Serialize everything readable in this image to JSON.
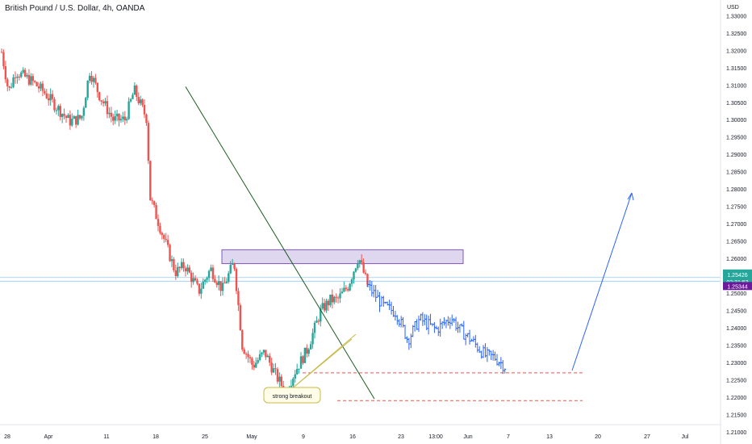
{
  "header": {
    "title": "British Pound / U.S. Dollar, 4h, OANDA"
  },
  "chart_data": {
    "type": "candlestick",
    "symbol": "British Pound / U.S. Dollar, 4h, OANDA",
    "price_axis": {
      "unit": "USD",
      "ticks": [
        "1.33000",
        "1.32500",
        "1.32000",
        "1.31500",
        "1.31000",
        "1.30500",
        "1.30000",
        "1.29500",
        "1.29000",
        "1.28500",
        "1.28000",
        "1.27500",
        "1.27000",
        "1.26500",
        "1.26000",
        "1.25500",
        "1.25000",
        "1.24500",
        "1.24000",
        "1.23500",
        "1.23000",
        "1.22500",
        "1.22000",
        "1.21500",
        "1.21000"
      ],
      "range": [
        1.2065,
        1.3345
      ]
    },
    "time_axis": {
      "ticks": [
        "28",
        "Apr",
        "11",
        "18",
        "25",
        "May",
        "9",
        "16",
        "23",
        "13:00",
        "Jun",
        "7",
        "13",
        "20",
        "27",
        "Jul"
      ]
    },
    "price_labels": {
      "current_price": "1.25426",
      "countdown": "02:31:53",
      "second_price": "1.25344"
    },
    "colors": {
      "up": "#26a69a",
      "down": "#ef5350",
      "projection": "#2962ff",
      "trendline": "#1b5e20",
      "zone_fill": "#d1c4e9",
      "zone_border": "#7e57c2",
      "support": "#ef5350",
      "arrow": "#2962ff",
      "current_label": "#26a69a",
      "second_label": "#6a1b9a"
    },
    "annotations": {
      "callout": "strong breakout",
      "resistance_zone": [
        1.2585,
        1.2625
      ],
      "support_levels": [
        1.227,
        1.219
      ],
      "trendline": {
        "from": [
          "Apr 22",
          1.3095
        ],
        "to": [
          "May 15",
          1.2195
        ]
      },
      "arrow": {
        "from": [
          "Jun 15",
          1.224
        ],
        "to": [
          "Jun 25",
          1.2785
        ]
      }
    },
    "series": [
      {
        "kind": "candles",
        "waypoints": [
          [
            1.3195,
            0
          ],
          [
            1.308,
            0.6
          ],
          [
            1.314,
            1.2
          ],
          [
            1.311,
            2.6
          ],
          [
            1.308,
            3.6
          ],
          [
            1.304,
            4.6
          ],
          [
            1.2995,
            5.8
          ],
          [
            1.3005,
            6.8
          ],
          [
            1.314,
            7.5
          ],
          [
            1.3065,
            8.4
          ],
          [
            1.3,
            9.5
          ],
          [
            1.3,
            10.5
          ],
          [
            1.3085,
            11.3
          ],
          [
            1.3,
            12.4
          ],
          [
            1.278,
            12.6
          ],
          [
            1.268,
            13.6
          ],
          [
            1.262,
            14.2
          ],
          [
            1.256,
            14.8
          ],
          [
            1.258,
            15.6
          ],
          [
            1.2505,
            16.8
          ],
          [
            1.257,
            17.8
          ],
          [
            1.251,
            18.8
          ],
          [
            1.259,
            19.8
          ],
          [
            1.235,
            20.5
          ],
          [
            1.229,
            21.4
          ],
          [
            1.233,
            22.4
          ],
          [
            1.226,
            23.4
          ],
          [
            1.2215,
            24.2
          ],
          [
            1.2275,
            25
          ],
          [
            1.2335,
            26
          ],
          [
            1.245,
            27.2
          ],
          [
            1.248,
            28
          ],
          [
            1.248,
            28.6
          ],
          [
            1.252,
            29.5
          ],
          [
            1.2605,
            30.4
          ],
          [
            1.252,
            31.2
          ]
        ]
      },
      {
        "kind": "projection",
        "waypoints": [
          [
            1.252,
            31.2
          ],
          [
            1.246,
            32.6
          ],
          [
            1.2445,
            33.6
          ],
          [
            1.2365,
            34.6
          ],
          [
            1.2425,
            35.6
          ],
          [
            1.2395,
            37
          ],
          [
            1.243,
            38.3
          ],
          [
            1.2395,
            39
          ],
          [
            1.2365,
            40
          ],
          [
            1.232,
            41.2
          ],
          [
            1.2315,
            42
          ],
          [
            1.2285,
            43
          ]
        ]
      }
    ]
  }
}
